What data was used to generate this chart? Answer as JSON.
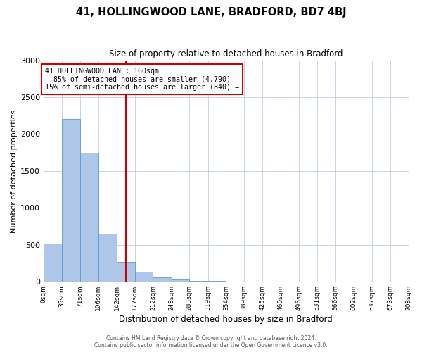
{
  "title": "41, HOLLINGWOOD LANE, BRADFORD, BD7 4BJ",
  "subtitle": "Size of property relative to detached houses in Bradford",
  "xlabel": "Distribution of detached houses by size in Bradford",
  "ylabel": "Number of detached properties",
  "bar_color": "#aec6e8",
  "bar_edge_color": "#5b9bd5",
  "background_color": "#ffffff",
  "grid_color": "#c8d4e3",
  "annotation_box_color": "#cc0000",
  "vline_color": "#cc0000",
  "vline_x": 160,
  "annotation_title": "41 HOLLINGWOOD LANE: 160sqm",
  "annotation_line1": "← 85% of detached houses are smaller (4,790)",
  "annotation_line2": "15% of semi-detached houses are larger (840) →",
  "bin_edges": [
    0,
    35,
    71,
    106,
    142,
    177,
    212,
    248,
    283,
    319,
    354,
    389,
    425,
    460,
    496,
    531,
    566,
    602,
    637,
    673,
    708
  ],
  "bar_heights": [
    520,
    2200,
    1750,
    650,
    270,
    140,
    60,
    30,
    15,
    8,
    3,
    1,
    0,
    0,
    0,
    0,
    0,
    0,
    0,
    0
  ],
  "ylim": [
    0,
    3000
  ],
  "yticks": [
    0,
    500,
    1000,
    1500,
    2000,
    2500,
    3000
  ],
  "footer_line1": "Contains HM Land Registry data © Crown copyright and database right 2024.",
  "footer_line2": "Contains public sector information licensed under the Open Government Licence v3.0."
}
